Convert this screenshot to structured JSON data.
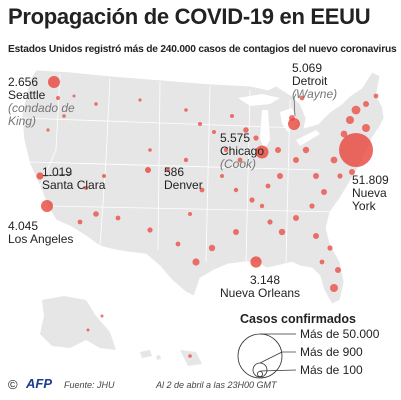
{
  "title": "Propagación de COVID-19 en EEUU",
  "subtitle": "Estados Unidos registró más de 240.000 casos de contagios del nuevo coronavirus",
  "colors": {
    "land": "#e6e6e6",
    "border": "#ffffff",
    "bubble": "#e8453c",
    "bubble_fill": "rgba(232,69,60,0.8)"
  },
  "labels": {
    "seattle": {
      "num": "2.656",
      "city": "Seattle",
      "county": "(condado de King)"
    },
    "santa_clara": {
      "num": "1.019",
      "city": "Santa Clara"
    },
    "los_angeles": {
      "num": "4.045",
      "city": "Los Angeles"
    },
    "denver": {
      "num": "586",
      "city": "Denver"
    },
    "chicago": {
      "num": "5.575",
      "city": "Chicago",
      "county": "(Cook)"
    },
    "detroit": {
      "num": "5.069",
      "city": "Detroit",
      "county": "(Wayne)"
    },
    "new_york": {
      "num": "51.809",
      "city": "Nueva York"
    },
    "new_orleans": {
      "num": "3.148",
      "city": "Nueva Orleans"
    }
  },
  "legend": {
    "title": "Casos confirmados",
    "items": [
      "Más de 50.000",
      "Más de 900",
      "Más de 100"
    ]
  },
  "footer": {
    "copyright": "©",
    "agency": "AFP",
    "source": "Fuente: JHU",
    "date": "Al 2 de abril a las 23H00 GMT"
  }
}
